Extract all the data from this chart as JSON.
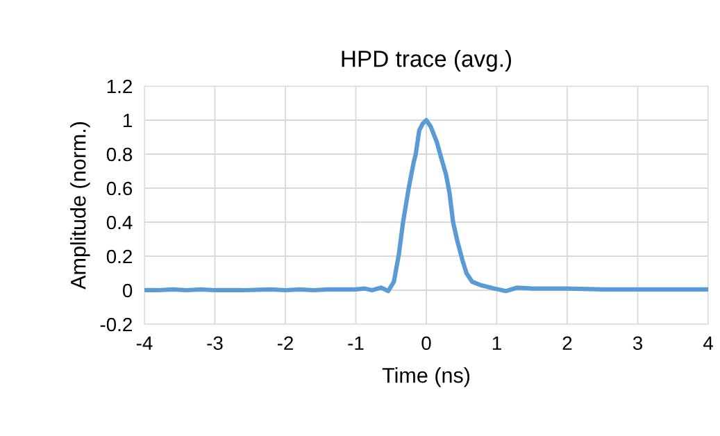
{
  "chart_data": {
    "type": "line",
    "title": "HPD trace (avg.)",
    "xlabel": "Time (ns)",
    "ylabel": "Amplitude (norm.)",
    "series": [
      {
        "color": "#5b9bd5",
        "x": [
          -4,
          -3.8,
          -3.6,
          -3.4,
          -3.2,
          -3.0,
          -2.6,
          -2.2,
          -2.0,
          -1.8,
          -1.6,
          -1.4,
          -1.2,
          -1.0,
          -0.88,
          -0.77,
          -0.64,
          -0.54,
          -0.46,
          -0.39,
          -0.33,
          -0.25,
          -0.18,
          -0.15,
          -0.1,
          -0.05,
          0,
          0.065,
          0.15,
          0.21,
          0.28,
          0.33,
          0.38,
          0.44,
          0.51,
          0.57,
          0.65,
          0.77,
          0.96,
          1.13,
          1.29,
          1.5,
          2.0,
          2.5,
          3.0,
          3.5,
          4.0
        ],
        "values": [
          0,
          0,
          0.005,
          0,
          0.005,
          0,
          0,
          0.005,
          0,
          0.005,
          0,
          0.005,
          0.005,
          0.005,
          0.01,
          0,
          0.015,
          -0.005,
          0.05,
          0.21,
          0.4,
          0.6,
          0.75,
          0.8,
          0.94,
          0.98,
          1.0,
          0.96,
          0.87,
          0.78,
          0.68,
          0.57,
          0.4,
          0.29,
          0.18,
          0.1,
          0.05,
          0.03,
          0.01,
          -0.005,
          0.015,
          0.01,
          0.01,
          0.005,
          0.005,
          0.005,
          0.005
        ]
      }
    ],
    "xlim": [
      -4,
      4
    ],
    "xticks": [
      -4,
      -3,
      -2,
      -1,
      0,
      1,
      2,
      3,
      4
    ],
    "ylim": [
      -0.2,
      1.2
    ],
    "yticks": [
      -0.2,
      0,
      0.2,
      0.4,
      0.6,
      0.8,
      1,
      1.2
    ],
    "grid": true,
    "legend": false,
    "marker": "none",
    "line_style": "solid"
  }
}
